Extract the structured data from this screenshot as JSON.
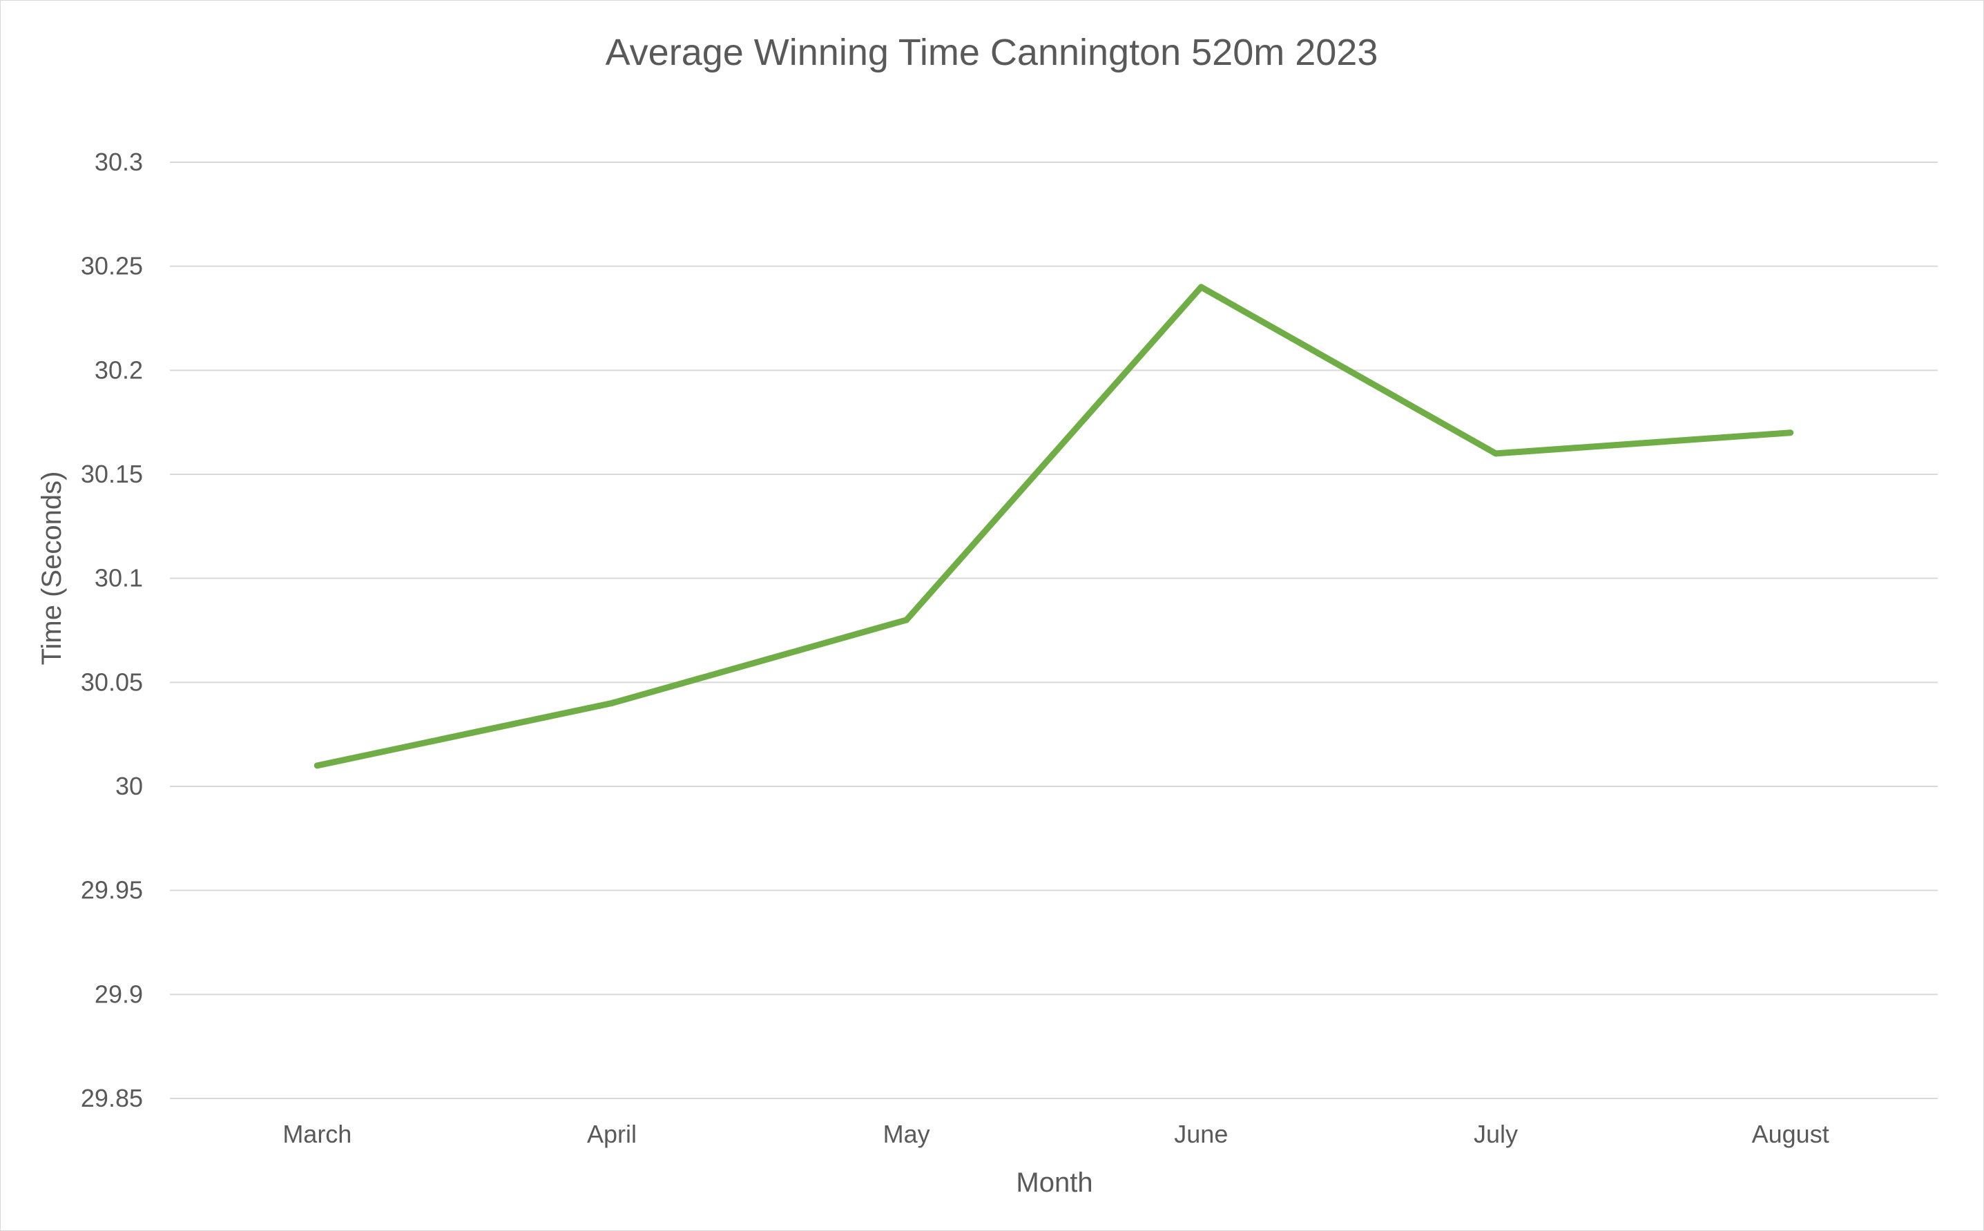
{
  "chart_data": {
    "type": "line",
    "title": "Average Winning Time Cannington 520m 2023",
    "xlabel": "Month",
    "ylabel": "Time (Seconds)",
    "categories": [
      "March",
      "April",
      "May",
      "June",
      "July",
      "August"
    ],
    "series": [
      {
        "name": "Average Winning Time",
        "values": [
          30.01,
          30.04,
          30.08,
          30.24,
          30.16,
          30.17
        ],
        "color": "#70ad47"
      }
    ],
    "ylim": [
      29.85,
      30.3
    ],
    "yticks": [
      29.85,
      29.9,
      29.95,
      30,
      30.05,
      30.1,
      30.15,
      30.2,
      30.25,
      30.3
    ],
    "ytick_labels": [
      "29.85",
      "29.9",
      "29.95",
      "30",
      "30.05",
      "30.1",
      "30.15",
      "30.2",
      "30.25",
      "30.3"
    ],
    "grid": true,
    "legend": "none"
  }
}
